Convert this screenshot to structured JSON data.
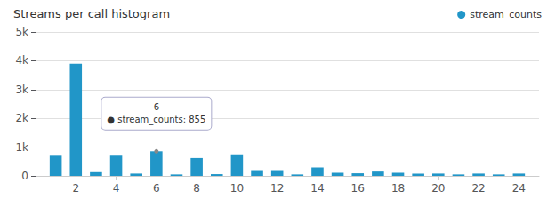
{
  "chart_data": {
    "type": "bar",
    "title": "Streams per call histogram",
    "x": [
      1,
      2,
      3,
      4,
      5,
      6,
      7,
      8,
      9,
      10,
      11,
      12,
      13,
      14,
      15,
      16,
      17,
      18,
      19,
      20,
      21,
      22,
      23,
      24
    ],
    "series": [
      {
        "name": "stream_counts",
        "color": "#2196c8",
        "values": [
          700,
          3900,
          130,
          700,
          80,
          855,
          50,
          620,
          60,
          750,
          200,
          200,
          50,
          290,
          110,
          90,
          150,
          110,
          80,
          80,
          50,
          80,
          50,
          80
        ]
      }
    ],
    "xlim": [
      0,
      25
    ],
    "xticks": [
      2,
      4,
      6,
      8,
      10,
      12,
      14,
      16,
      18,
      20,
      22,
      24
    ],
    "ylim": [
      0,
      5000
    ],
    "yticks": [
      0,
      {
        "value": 1000,
        "label": "1k"
      },
      {
        "value": 2000,
        "label": "2k"
      },
      {
        "value": 3000,
        "label": "3k"
      },
      {
        "value": 4000,
        "label": "4k"
      },
      {
        "value": 5000,
        "label": "5k"
      }
    ],
    "grid": true,
    "legend": "upper right",
    "annotations": [
      {
        "x": 6,
        "y": 855,
        "text": "6\n● stream_counts: 855"
      }
    ]
  }
}
